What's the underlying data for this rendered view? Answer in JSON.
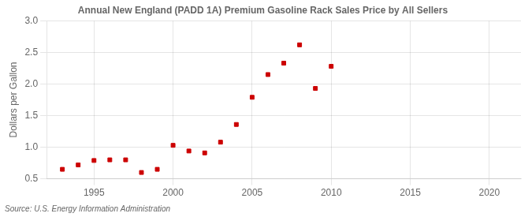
{
  "chart_data": {
    "type": "scatter",
    "title": "Annual New England (PADD 1A) Premium Gasoline Rack Sales Price by All Sellers",
    "ylabel": "Dollars per Gallon",
    "annotation": "Source: U.S. Energy Information Administration",
    "x": [
      1993,
      1994,
      1995,
      1996,
      1997,
      1998,
      1999,
      2000,
      2001,
      2002,
      2003,
      2004,
      2005,
      2006,
      2007,
      2008,
      2009,
      2010
    ],
    "values": [
      0.65,
      0.72,
      0.79,
      0.8,
      0.8,
      0.6,
      0.65,
      1.03,
      0.94,
      0.91,
      1.08,
      1.36,
      1.79,
      2.15,
      2.33,
      2.62,
      1.93,
      2.28
    ],
    "color": "#cc0000",
    "marker": "square",
    "xlim": [
      1992,
      2022
    ],
    "xticks": [
      1995,
      2000,
      2005,
      2010,
      2015,
      2020
    ],
    "ylim": [
      0.5,
      3.0
    ],
    "yticks": [
      0.5,
      {
        "value": 1.0,
        "label": "1.0"
      },
      1.5,
      {
        "value": 2.0,
        "label": "2.0"
      },
      2.5,
      {
        "value": 3.0,
        "label": "3.0"
      }
    ],
    "grid": true
  }
}
